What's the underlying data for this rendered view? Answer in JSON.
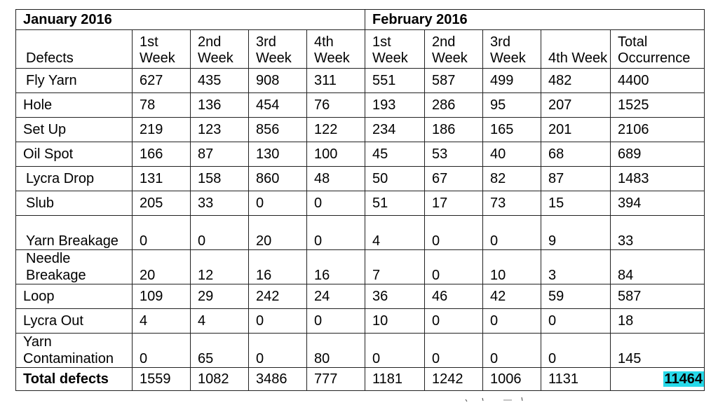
{
  "months": {
    "first": "January 2016",
    "second": "February 2016"
  },
  "headers": {
    "defects": "Defects",
    "w1": "1st Week",
    "w2": "2nd Week",
    "w3": "3rd Week",
    "w4": "4th Week",
    "total": "Total Occurrence"
  },
  "rows": [
    {
      "name": "Fly Yarn",
      "jan": [
        "627",
        "435",
        "908",
        "311"
      ],
      "feb": [
        "551",
        "587",
        "499",
        "482"
      ],
      "total": "4400"
    },
    {
      "name": "Hole",
      "jan": [
        "78",
        "136",
        "454",
        "76"
      ],
      "feb": [
        "193",
        "286",
        "95",
        "207"
      ],
      "total": "1525"
    },
    {
      "name": "Set Up",
      "jan": [
        "219",
        "123",
        "856",
        "122"
      ],
      "feb": [
        "234",
        "186",
        "165",
        "201"
      ],
      "total": "2106"
    },
    {
      "name": "Oil Spot",
      "jan": [
        "166",
        "87",
        "130",
        "100"
      ],
      "feb": [
        "45",
        "53",
        "40",
        "68"
      ],
      "total": "689"
    },
    {
      "name": "Lycra Drop",
      "jan": [
        "131",
        "158",
        "860",
        "48"
      ],
      "feb": [
        "50",
        "67",
        "82",
        "87"
      ],
      "total": "1483"
    },
    {
      "name": "Slub",
      "jan": [
        "205",
        "33",
        "0",
        "0"
      ],
      "feb": [
        "51",
        "17",
        "73",
        "15"
      ],
      "total": "394"
    },
    {
      "name": "Yarn Breakage",
      "jan": [
        "0",
        "0",
        "20",
        "0"
      ],
      "feb": [
        "4",
        "0",
        "0",
        "9"
      ],
      "total": "33"
    },
    {
      "name": "Needle Breakage",
      "jan": [
        "20",
        "12",
        "16",
        "16"
      ],
      "feb": [
        "7",
        "0",
        "10",
        "3"
      ],
      "total": "84"
    },
    {
      "name": "Loop",
      "jan": [
        "109",
        "29",
        "242",
        "24"
      ],
      "feb": [
        "36",
        "46",
        "42",
        "59"
      ],
      "total": "587"
    },
    {
      "name": "Lycra Out",
      "jan": [
        "4",
        "4",
        "0",
        "0"
      ],
      "feb": [
        "10",
        "0",
        "0",
        "0"
      ],
      "total": "18"
    },
    {
      "name": "Yarn Contamination",
      "jan": [
        "0",
        "65",
        "0",
        "80"
      ],
      "feb": [
        "0",
        "0",
        "0",
        "0"
      ],
      "total": "145"
    }
  ],
  "totals": {
    "label": "Total defects",
    "jan": [
      "1559",
      "1082",
      "3486",
      "777"
    ],
    "feb": [
      "1181",
      "1242",
      "1006",
      "1131"
    ],
    "grand": "11464"
  },
  "colors": {
    "highlight": "#27d9e9",
    "border": "#222222"
  }
}
